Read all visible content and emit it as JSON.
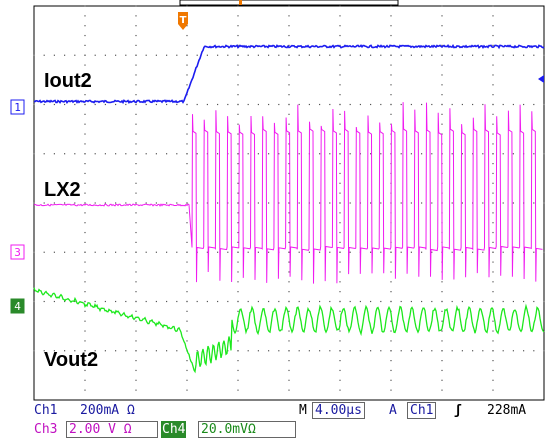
{
  "trigger_marker": "T",
  "channel_markers": {
    "ch1": "1",
    "ch3": "3",
    "ch4": "4"
  },
  "waveform_labels": {
    "ch1": "Iout2",
    "ch3": "LX2",
    "ch4": "Vout2"
  },
  "colors": {
    "ch1": "#1c1cf0",
    "ch3": "#f01cf0",
    "ch4": "#1ce81c",
    "trigger": "#f07800",
    "ch4_tag_bg": "#2a8a2a"
  },
  "status_bar": {
    "ch1_name": "Ch1",
    "ch1_scale": "200mA Ω",
    "ch3_name": "Ch3",
    "ch3_scale": "2.00 V Ω",
    "ch4_name": "Ch4",
    "ch4_scale": "20.0mVΩ",
    "timebase_label": "M",
    "timebase_value": "4.00µs",
    "trigger_mode": "A",
    "trigger_source": "Ch1",
    "trigger_slope": "ʃ",
    "trigger_level": "228mA"
  }
}
